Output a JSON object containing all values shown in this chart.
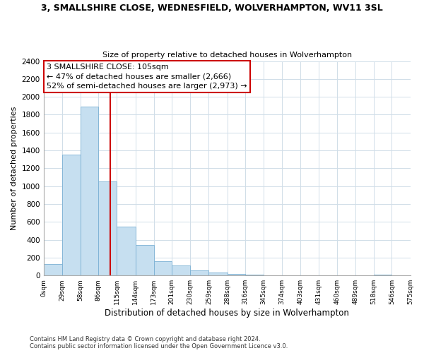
{
  "title": "3, SMALLSHIRE CLOSE, WEDNESFIELD, WOLVERHAMPTON, WV11 3SL",
  "subtitle": "Size of property relative to detached houses in Wolverhampton",
  "xlabel": "Distribution of detached houses by size in Wolverhampton",
  "ylabel": "Number of detached properties",
  "bin_edges": [
    0,
    29,
    58,
    86,
    115,
    144,
    173,
    201,
    230,
    259,
    288,
    316,
    345,
    374,
    403,
    431,
    460,
    489,
    518,
    546,
    575
  ],
  "bar_heights": [
    125,
    1350,
    1890,
    1050,
    550,
    340,
    160,
    110,
    55,
    30,
    20,
    10,
    5,
    3,
    1,
    0,
    0,
    0,
    8,
    0
  ],
  "bar_color": "#c6dff0",
  "bar_edge_color": "#7ab0d4",
  "vline_x": 105,
  "vline_color": "#cc0000",
  "annotation_title": "3 SMALLSHIRE CLOSE: 105sqm",
  "annotation_line1": "← 47% of detached houses are smaller (2,666)",
  "annotation_line2": "52% of semi-detached houses are larger (2,973) →",
  "annotation_box_color": "#ffffff",
  "annotation_box_edge": "#cc0000",
  "ylim": [
    0,
    2400
  ],
  "yticks": [
    0,
    200,
    400,
    600,
    800,
    1000,
    1200,
    1400,
    1600,
    1800,
    2000,
    2200,
    2400
  ],
  "tick_labels": [
    "0sqm",
    "29sqm",
    "58sqm",
    "86sqm",
    "115sqm",
    "144sqm",
    "173sqm",
    "201sqm",
    "230sqm",
    "259sqm",
    "288sqm",
    "316sqm",
    "345sqm",
    "374sqm",
    "403sqm",
    "431sqm",
    "460sqm",
    "489sqm",
    "518sqm",
    "546sqm",
    "575sqm"
  ],
  "footnote1": "Contains HM Land Registry data © Crown copyright and database right 2024.",
  "footnote2": "Contains public sector information licensed under the Open Government Licence v3.0.",
  "bg_color": "#ffffff",
  "grid_color": "#d0dde8"
}
